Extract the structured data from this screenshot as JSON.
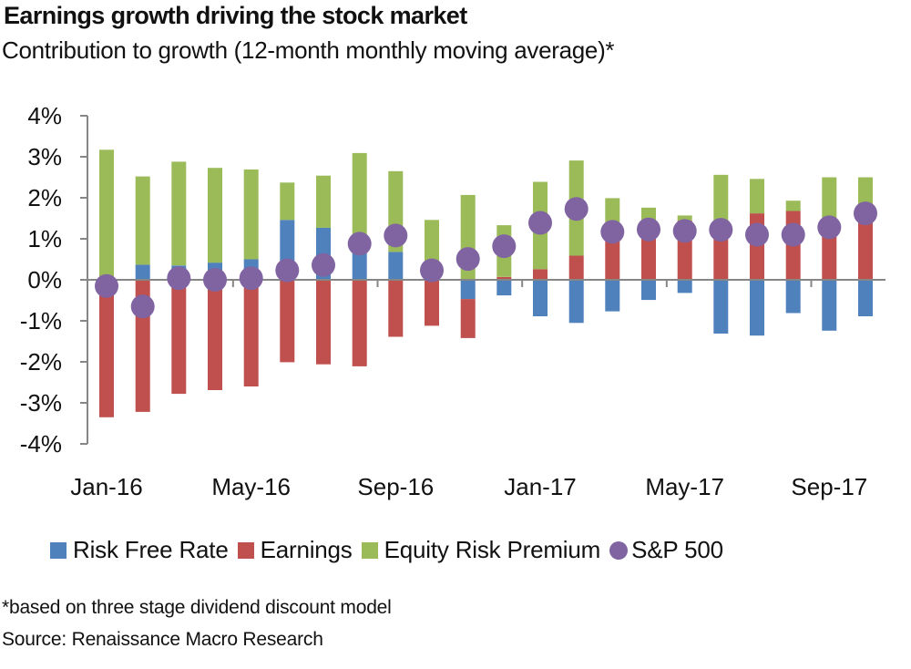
{
  "header": {
    "title": "Earnings growth driving the stock market",
    "subtitle": "Contribution to growth (12-month monthly moving average)*"
  },
  "footer": {
    "note": "*based on three stage dividend discount model",
    "source": "Source: Renaissance Macro Research"
  },
  "colors": {
    "risk_free_rate": "#4F81BD",
    "earnings": "#C0504D",
    "equity_risk_premium": "#9BBB59",
    "sp500": "#8064A2",
    "axis": "#868686"
  },
  "chart_data": {
    "type": "bar",
    "stacked": true,
    "title": "Earnings growth driving the stock market",
    "subtitle": "Contribution to growth (12-month monthly moving average)*",
    "xlabel": "",
    "ylabel": "",
    "ylim": [
      -4,
      4
    ],
    "yticks": [
      4,
      3,
      2,
      1,
      0,
      -1,
      -2,
      -3,
      -4
    ],
    "ytick_labels": [
      "4%",
      "3%",
      "2%",
      "1%",
      "0%",
      "-1%",
      "-2%",
      "-3%",
      "-4%"
    ],
    "grid": false,
    "legend_position": "bottom",
    "categories": [
      "Jan-16",
      "Feb-16",
      "Mar-16",
      "Apr-16",
      "May-16",
      "Jun-16",
      "Jul-16",
      "Aug-16",
      "Sep-16",
      "Oct-16",
      "Nov-16",
      "Dec-16",
      "Jan-17",
      "Feb-17",
      "Mar-17",
      "Apr-17",
      "May-17",
      "Jun-17",
      "Jul-17",
      "Aug-17",
      "Sep-17",
      "Oct-17"
    ],
    "xtick_labels": [
      "Jan-16",
      "May-16",
      "Sep-16",
      "Jan-17",
      "May-17",
      "Sep-17"
    ],
    "xtick_label_every": 4,
    "series": [
      {
        "name": "Risk Free Rate",
        "kind": "bar",
        "color_key": "risk_free_rate",
        "values": [
          0.0,
          0.37,
          0.35,
          0.42,
          0.5,
          1.46,
          1.27,
          0.75,
          0.68,
          0.0,
          -0.47,
          -0.38,
          -0.89,
          -1.05,
          -0.77,
          -0.49,
          -0.32,
          -1.31,
          -1.36,
          -0.81,
          -1.24,
          -0.89
        ]
      },
      {
        "name": "Earnings",
        "kind": "bar",
        "color_key": "earnings",
        "values": [
          -3.35,
          -3.22,
          -2.78,
          -2.69,
          -2.6,
          -2.01,
          -2.06,
          -2.11,
          -1.39,
          -1.12,
          -0.95,
          0.07,
          0.26,
          0.59,
          1.3,
          1.45,
          1.45,
          1.3,
          1.62,
          1.68,
          1.35,
          1.85
        ]
      },
      {
        "name": "Equity Risk Premium",
        "kind": "bar",
        "color_key": "equity_risk_premium",
        "values": [
          3.17,
          2.15,
          2.53,
          2.31,
          2.19,
          0.91,
          1.27,
          2.34,
          1.97,
          1.46,
          2.07,
          1.26,
          2.13,
          2.32,
          0.69,
          0.31,
          0.12,
          1.26,
          0.84,
          0.25,
          1.15,
          0.65
        ]
      },
      {
        "name": "S&P 500",
        "kind": "dot",
        "color_key": "sp500",
        "values": [
          -0.15,
          -0.65,
          0.04,
          0.0,
          0.04,
          0.23,
          0.36,
          0.88,
          1.08,
          0.23,
          0.51,
          0.82,
          1.39,
          1.73,
          1.17,
          1.23,
          1.19,
          1.22,
          1.1,
          1.1,
          1.28,
          1.62
        ]
      }
    ]
  }
}
